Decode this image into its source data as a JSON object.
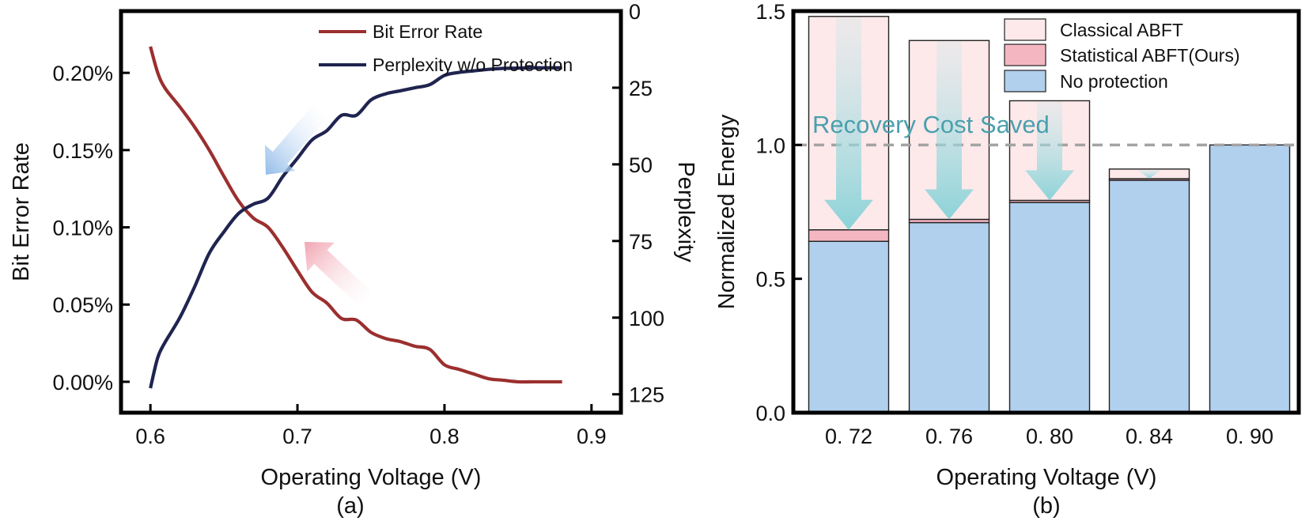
{
  "chart_data": [
    {
      "id": "a",
      "type": "line",
      "subtitle": "(a)",
      "xlabel": "Operating Voltage (V)",
      "ylabel_left": "Bit Error Rate",
      "ylabel_right": "Perplexity",
      "xlim": [
        0.58,
        0.92
      ],
      "ylim_left": [
        -0.0002,
        0.0024
      ],
      "ylim_right": [
        0,
        131
      ],
      "right_axis_inverted": true,
      "x_ticks": [
        "0.6",
        "0.7",
        "0.8",
        "0.9"
      ],
      "left_ticks": [
        "0.00%",
        "0.05%",
        "0.10%",
        "0.15%",
        "0.20%"
      ],
      "right_ticks": [
        "0",
        "25",
        "50",
        "75",
        "100",
        "125"
      ],
      "series": [
        {
          "name": "Bit Error Rate",
          "axis": "left",
          "color": "#9b2f2f",
          "x": [
            0.6,
            0.605,
            0.61,
            0.62,
            0.63,
            0.64,
            0.65,
            0.66,
            0.67,
            0.68,
            0.69,
            0.7,
            0.71,
            0.72,
            0.73,
            0.74,
            0.75,
            0.76,
            0.77,
            0.78,
            0.79,
            0.8,
            0.81,
            0.82,
            0.83,
            0.84,
            0.85,
            0.86,
            0.87,
            0.88
          ],
          "y": [
            0.00217,
            0.002,
            0.0019,
            0.00178,
            0.00165,
            0.0015,
            0.00133,
            0.00117,
            0.00106,
            0.001,
            0.00087,
            0.00072,
            0.00058,
            0.00051,
            0.00041,
            0.0004,
            0.00032,
            0.00028,
            0.00026,
            0.00023,
            0.00021,
            0.00011,
            8e-05,
            5e-05,
            2e-05,
            1e-05,
            0.0,
            0.0,
            0.0,
            0.0
          ]
        },
        {
          "name": "Perplexity w/o Protection",
          "axis": "right",
          "color": "#1f2450",
          "x": [
            0.6,
            0.605,
            0.61,
            0.62,
            0.63,
            0.64,
            0.65,
            0.66,
            0.67,
            0.68,
            0.69,
            0.7,
            0.71,
            0.72,
            0.73,
            0.74,
            0.75,
            0.76,
            0.77,
            0.78,
            0.79,
            0.8,
            0.81,
            0.82,
            0.83,
            0.84,
            0.85,
            0.86,
            0.87,
            0.88
          ],
          "y": [
            123,
            113,
            108,
            100,
            90,
            79,
            72,
            66,
            63,
            61,
            54,
            48,
            42,
            39,
            34,
            34,
            29,
            27,
            26,
            25,
            24,
            21,
            20,
            19.5,
            19,
            18.7,
            18.6,
            18.5,
            18.5,
            18.5
          ]
        }
      ],
      "legend": {
        "placement": "top-right",
        "items": [
          {
            "label": "Bit Error Rate",
            "color": "#9b2f2f"
          },
          {
            "label": "Perplexity w/o Protection",
            "color": "#1f2450"
          }
        ]
      },
      "annotations": [
        {
          "kind": "arrow",
          "color": "#8cb8e8",
          "description": "points toward perplexity curve"
        },
        {
          "kind": "arrow",
          "color": "#f0a0ae",
          "description": "points toward bit error rate curve"
        }
      ]
    },
    {
      "id": "b",
      "type": "bar",
      "stacked": true,
      "subtitle": "(b)",
      "xlabel": "Operating Voltage (V)",
      "ylabel": "Normalized Energy",
      "ylim": [
        0,
        1.5
      ],
      "y_ticks": [
        "0.0",
        "0.5",
        "1.0",
        "1.5"
      ],
      "categories": [
        "0. 72",
        "0. 76",
        "0. 80",
        "0. 84",
        "0. 90"
      ],
      "series": [
        {
          "name": "No protection",
          "color": "#b1d0ee",
          "values": [
            0.64,
            0.71,
            0.785,
            0.868,
            1.0
          ]
        },
        {
          "name": "Statistical ABFT(Ours)",
          "color": "#f4b7c2",
          "values": [
            0.043,
            0.012,
            0.008,
            0.006,
            0.0
          ]
        },
        {
          "name": "Classical ABFT",
          "color": "#fde9ea",
          "values": [
            0.797,
            0.668,
            0.372,
            0.036,
            0.0
          ]
        }
      ],
      "reference_line": {
        "y": 1.0,
        "style": "dashed",
        "color": "#a3a3a3"
      },
      "annotation_text": "Recovery Cost Saved",
      "annotation_color": "#4aa0ad",
      "legend": {
        "placement": "top-right",
        "items": [
          {
            "label": "Classical ABFT",
            "color": "#fde9ea"
          },
          {
            "label": "Statistical ABFT(Ours)",
            "color": "#f4b7c2"
          },
          {
            "label": "No protection",
            "color": "#b1d0ee"
          }
        ]
      }
    }
  ]
}
